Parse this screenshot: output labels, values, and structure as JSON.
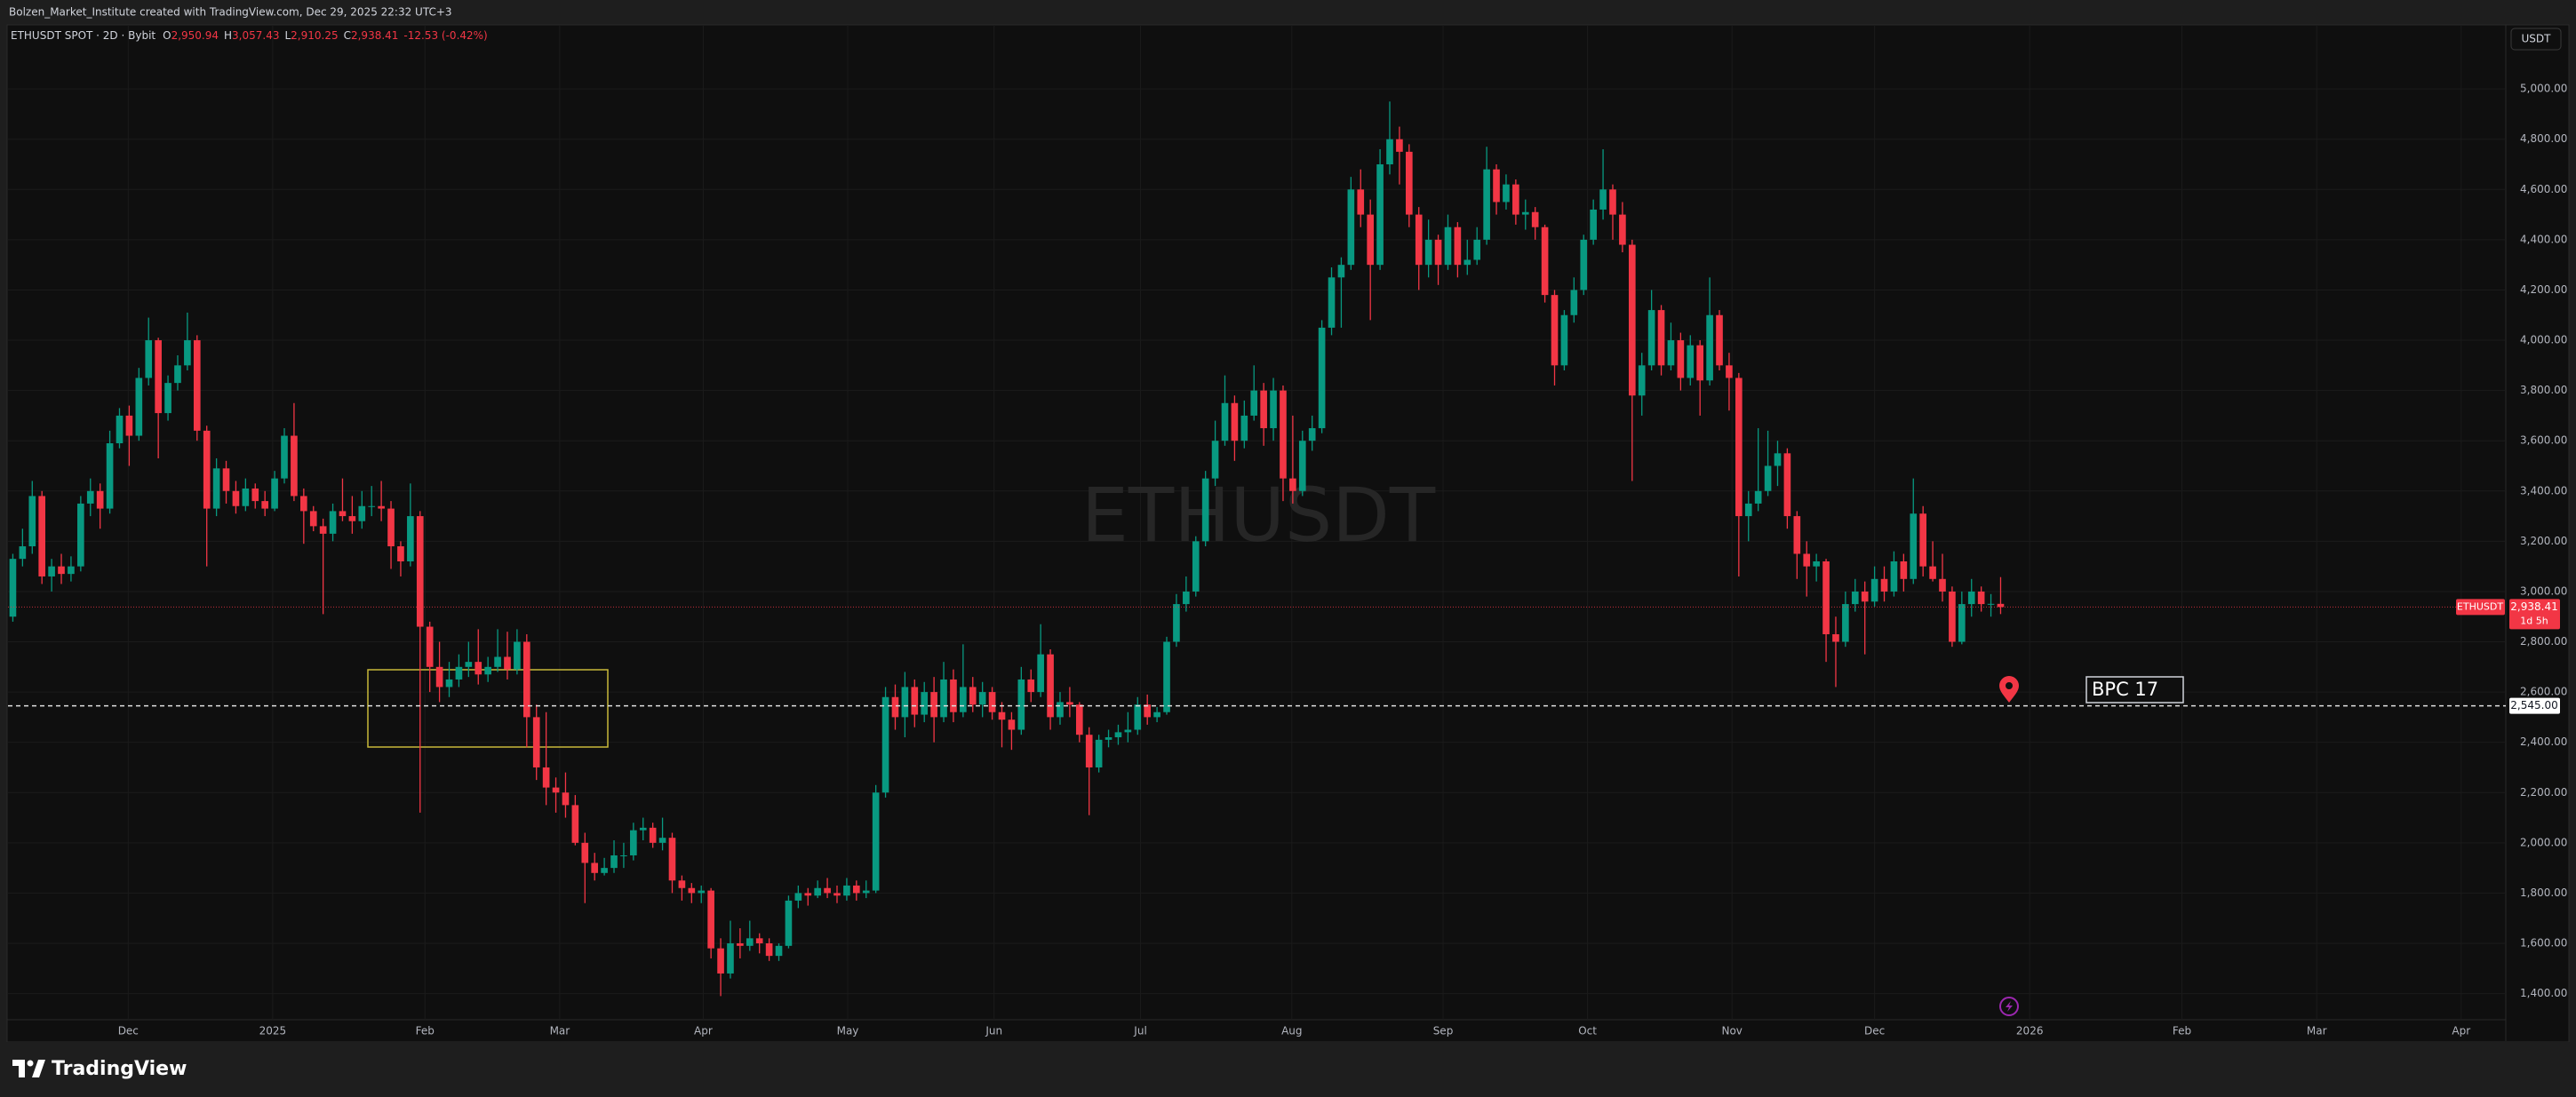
{
  "header": {
    "caption": "Bolzen_Market_Institute created with TradingView.com, Dec 29, 2025 22:32 UTC+3"
  },
  "chart_data": {
    "type": "candlestick",
    "symbol": "ETHUSDT SPOT · 2D · Bybit",
    "readout": [
      {
        "key": "O",
        "value": "2,950.94"
      },
      {
        "key": "H",
        "value": "3,057.43"
      },
      {
        "key": "L",
        "value": "2,910.25"
      },
      {
        "key": "C",
        "value": "2,938.41"
      }
    ],
    "change": "-12.53 (-0.42%)",
    "currency": "USDT",
    "watermark": "ETHUSDT",
    "up_color": "#089981",
    "down_color": "#f23645",
    "grid": true,
    "ohlc": [
      [
        2900,
        3150,
        2880,
        3130
      ],
      [
        3130,
        3250,
        3100,
        3180
      ],
      [
        3180,
        3440,
        3150,
        3380
      ],
      [
        3380,
        3400,
        3030,
        3060
      ],
      [
        3060,
        3130,
        3000,
        3100
      ],
      [
        3100,
        3150,
        3030,
        3070
      ],
      [
        3070,
        3140,
        3040,
        3100
      ],
      [
        3100,
        3380,
        3080,
        3350
      ],
      [
        3350,
        3450,
        3300,
        3400
      ],
      [
        3400,
        3430,
        3250,
        3330
      ],
      [
        3330,
        3640,
        3310,
        3590
      ],
      [
        3590,
        3730,
        3570,
        3700
      ],
      [
        3700,
        3740,
        3500,
        3620
      ],
      [
        3620,
        3890,
        3600,
        3850
      ],
      [
        3850,
        4090,
        3820,
        4000
      ],
      [
        4000,
        4010,
        3530,
        3710
      ],
      [
        3710,
        3860,
        3680,
        3830
      ],
      [
        3830,
        3940,
        3800,
        3900
      ],
      [
        3900,
        4110,
        3880,
        4000
      ],
      [
        4000,
        4020,
        3600,
        3640
      ],
      [
        3640,
        3660,
        3100,
        3330
      ],
      [
        3330,
        3530,
        3300,
        3490
      ],
      [
        3490,
        3520,
        3350,
        3400
      ],
      [
        3400,
        3440,
        3310,
        3340
      ],
      [
        3340,
        3450,
        3320,
        3410
      ],
      [
        3410,
        3430,
        3330,
        3360
      ],
      [
        3360,
        3400,
        3300,
        3330
      ],
      [
        3330,
        3480,
        3320,
        3450
      ],
      [
        3450,
        3650,
        3430,
        3620
      ],
      [
        3620,
        3750,
        3360,
        3380
      ],
      [
        3380,
        3410,
        3190,
        3320
      ],
      [
        3320,
        3340,
        3240,
        3260
      ],
      [
        3260,
        3290,
        2910,
        3230
      ],
      [
        3230,
        3350,
        3200,
        3320
      ],
      [
        3320,
        3450,
        3280,
        3300
      ],
      [
        3300,
        3380,
        3230,
        3280
      ],
      [
        3280,
        3400,
        3250,
        3340
      ],
      [
        3340,
        3420,
        3300,
        3340
      ],
      [
        3340,
        3440,
        3280,
        3330
      ],
      [
        3330,
        3360,
        3090,
        3180
      ],
      [
        3180,
        3200,
        3060,
        3120
      ],
      [
        3120,
        3430,
        3100,
        3300
      ],
      [
        3300,
        3320,
        2120,
        2860
      ],
      [
        2860,
        2880,
        2600,
        2700
      ],
      [
        2700,
        2800,
        2560,
        2620
      ],
      [
        2620,
        2720,
        2580,
        2650
      ],
      [
        2650,
        2750,
        2620,
        2700
      ],
      [
        2700,
        2800,
        2660,
        2720
      ],
      [
        2720,
        2850,
        2630,
        2670
      ],
      [
        2670,
        2740,
        2640,
        2700
      ],
      [
        2700,
        2850,
        2680,
        2740
      ],
      [
        2740,
        2840,
        2650,
        2690
      ],
      [
        2690,
        2850,
        2670,
        2800
      ],
      [
        2800,
        2830,
        2380,
        2500
      ],
      [
        2500,
        2550,
        2250,
        2300
      ],
      [
        2300,
        2520,
        2150,
        2220
      ],
      [
        2220,
        2260,
        2120,
        2200
      ],
      [
        2200,
        2280,
        2100,
        2150
      ],
      [
        2150,
        2190,
        1990,
        2000
      ],
      [
        2000,
        2040,
        1760,
        1920
      ],
      [
        1920,
        1960,
        1850,
        1880
      ],
      [
        1880,
        1940,
        1870,
        1900
      ],
      [
        1900,
        2010,
        1880,
        1950
      ],
      [
        1950,
        2000,
        1900,
        1950
      ],
      [
        1950,
        2080,
        1930,
        2050
      ],
      [
        2050,
        2100,
        2010,
        2060
      ],
      [
        2060,
        2080,
        1980,
        2000
      ],
      [
        2000,
        2100,
        1970,
        2020
      ],
      [
        2020,
        2040,
        1800,
        1850
      ],
      [
        1850,
        1870,
        1770,
        1820
      ],
      [
        1820,
        1840,
        1760,
        1800
      ],
      [
        1800,
        1830,
        1760,
        1810
      ],
      [
        1810,
        1820,
        1540,
        1580
      ],
      [
        1580,
        1620,
        1390,
        1480
      ],
      [
        1480,
        1690,
        1460,
        1600
      ],
      [
        1600,
        1660,
        1540,
        1590
      ],
      [
        1590,
        1690,
        1570,
        1620
      ],
      [
        1620,
        1640,
        1560,
        1600
      ],
      [
        1600,
        1620,
        1530,
        1550
      ],
      [
        1550,
        1600,
        1530,
        1590
      ],
      [
        1590,
        1790,
        1580,
        1770
      ],
      [
        1770,
        1830,
        1740,
        1800
      ],
      [
        1800,
        1820,
        1750,
        1790
      ],
      [
        1790,
        1850,
        1780,
        1820
      ],
      [
        1820,
        1860,
        1780,
        1800
      ],
      [
        1800,
        1830,
        1760,
        1790
      ],
      [
        1790,
        1860,
        1770,
        1830
      ],
      [
        1830,
        1850,
        1770,
        1800
      ],
      [
        1800,
        1850,
        1780,
        1810
      ],
      [
        1810,
        2230,
        1800,
        2200
      ],
      [
        2200,
        2620,
        2180,
        2580
      ],
      [
        2580,
        2630,
        2450,
        2500
      ],
      [
        2500,
        2680,
        2420,
        2620
      ],
      [
        2620,
        2650,
        2460,
        2510
      ],
      [
        2510,
        2640,
        2480,
        2600
      ],
      [
        2600,
        2660,
        2400,
        2500
      ],
      [
        2500,
        2720,
        2480,
        2650
      ],
      [
        2650,
        2690,
        2480,
        2520
      ],
      [
        2520,
        2790,
        2500,
        2620
      ],
      [
        2620,
        2660,
        2520,
        2550
      ],
      [
        2550,
        2640,
        2500,
        2600
      ],
      [
        2600,
        2620,
        2490,
        2520
      ],
      [
        2520,
        2560,
        2380,
        2490
      ],
      [
        2490,
        2520,
        2370,
        2450
      ],
      [
        2450,
        2700,
        2430,
        2650
      ],
      [
        2650,
        2690,
        2560,
        2600
      ],
      [
        2600,
        2870,
        2580,
        2750
      ],
      [
        2750,
        2770,
        2450,
        2500
      ],
      [
        2500,
        2600,
        2470,
        2560
      ],
      [
        2560,
        2620,
        2500,
        2550
      ],
      [
        2550,
        2560,
        2400,
        2430
      ],
      [
        2430,
        2460,
        2110,
        2300
      ],
      [
        2300,
        2430,
        2280,
        2410
      ],
      [
        2410,
        2450,
        2380,
        2420
      ],
      [
        2420,
        2470,
        2390,
        2440
      ],
      [
        2440,
        2520,
        2400,
        2450
      ],
      [
        2450,
        2580,
        2430,
        2550
      ],
      [
        2550,
        2590,
        2470,
        2500
      ],
      [
        2500,
        2540,
        2480,
        2520
      ],
      [
        2520,
        2820,
        2510,
        2800
      ],
      [
        2800,
        2990,
        2780,
        2950
      ],
      [
        2950,
        3060,
        2920,
        3000
      ],
      [
        3000,
        3220,
        2980,
        3200
      ],
      [
        3200,
        3480,
        3180,
        3450
      ],
      [
        3450,
        3680,
        3420,
        3600
      ],
      [
        3600,
        3860,
        3580,
        3750
      ],
      [
        3750,
        3780,
        3520,
        3600
      ],
      [
        3600,
        3760,
        3570,
        3700
      ],
      [
        3700,
        3900,
        3680,
        3800
      ],
      [
        3800,
        3830,
        3580,
        3650
      ],
      [
        3650,
        3850,
        3600,
        3800
      ],
      [
        3800,
        3820,
        3360,
        3450
      ],
      [
        3450,
        3700,
        3350,
        3400
      ],
      [
        3400,
        3640,
        3380,
        3600
      ],
      [
        3600,
        3700,
        3560,
        3650
      ],
      [
        3650,
        4080,
        3630,
        4050
      ],
      [
        4050,
        4290,
        4020,
        4250
      ],
      [
        4250,
        4330,
        4050,
        4300
      ],
      [
        4300,
        4650,
        4280,
        4600
      ],
      [
        4600,
        4680,
        4450,
        4500
      ],
      [
        4500,
        4560,
        4080,
        4300
      ],
      [
        4300,
        4760,
        4280,
        4700
      ],
      [
        4700,
        4950,
        4660,
        4800
      ],
      [
        4800,
        4850,
        4620,
        4750
      ],
      [
        4750,
        4780,
        4450,
        4500
      ],
      [
        4500,
        4530,
        4200,
        4300
      ],
      [
        4300,
        4480,
        4250,
        4400
      ],
      [
        4400,
        4420,
        4220,
        4300
      ],
      [
        4300,
        4500,
        4280,
        4450
      ],
      [
        4450,
        4470,
        4250,
        4300
      ],
      [
        4300,
        4400,
        4260,
        4320
      ],
      [
        4320,
        4450,
        4300,
        4400
      ],
      [
        4400,
        4770,
        4380,
        4680
      ],
      [
        4680,
        4700,
        4500,
        4550
      ],
      [
        4550,
        4660,
        4520,
        4620
      ],
      [
        4620,
        4640,
        4460,
        4500
      ],
      [
        4500,
        4560,
        4440,
        4510
      ],
      [
        4510,
        4530,
        4400,
        4450
      ],
      [
        4450,
        4460,
        4150,
        4180
      ],
      [
        4180,
        4200,
        3820,
        3900
      ],
      [
        3900,
        4120,
        3880,
        4100
      ],
      [
        4100,
        4250,
        4070,
        4200
      ],
      [
        4200,
        4420,
        4180,
        4400
      ],
      [
        4400,
        4560,
        4380,
        4520
      ],
      [
        4520,
        4760,
        4480,
        4600
      ],
      [
        4600,
        4620,
        4400,
        4500
      ],
      [
        4500,
        4550,
        4350,
        4380
      ],
      [
        4380,
        4400,
        3440,
        3780
      ],
      [
        3780,
        3950,
        3700,
        3900
      ],
      [
        3900,
        4200,
        3880,
        4120
      ],
      [
        4120,
        4140,
        3860,
        3900
      ],
      [
        3900,
        4070,
        3880,
        4000
      ],
      [
        4000,
        4030,
        3800,
        3850
      ],
      [
        3850,
        4020,
        3820,
        3980
      ],
      [
        3980,
        4000,
        3700,
        3840
      ],
      [
        3840,
        4250,
        3820,
        4100
      ],
      [
        4100,
        4120,
        3880,
        3900
      ],
      [
        3900,
        3950,
        3720,
        3850
      ],
      [
        3850,
        3870,
        3060,
        3300
      ],
      [
        3300,
        3400,
        3200,
        3350
      ],
      [
        3350,
        3650,
        3320,
        3400
      ],
      [
        3400,
        3640,
        3380,
        3500
      ],
      [
        3500,
        3600,
        3420,
        3550
      ],
      [
        3550,
        3570,
        3250,
        3300
      ],
      [
        3300,
        3320,
        3050,
        3150
      ],
      [
        3150,
        3200,
        2980,
        3100
      ],
      [
        3100,
        3150,
        3040,
        3120
      ],
      [
        3120,
        3130,
        2720,
        2830
      ],
      [
        2830,
        2900,
        2620,
        2800
      ],
      [
        2800,
        3000,
        2780,
        2950
      ],
      [
        2950,
        3050,
        2920,
        3000
      ],
      [
        3000,
        3040,
        2750,
        2960
      ],
      [
        2960,
        3100,
        2940,
        3050
      ],
      [
        3050,
        3100,
        2960,
        3000
      ],
      [
        3000,
        3160,
        2980,
        3120
      ],
      [
        3120,
        3150,
        3000,
        3050
      ],
      [
        3050,
        3450,
        3030,
        3310
      ],
      [
        3310,
        3340,
        3060,
        3100
      ],
      [
        3100,
        3200,
        3040,
        3050
      ],
      [
        3050,
        3150,
        2960,
        3000
      ],
      [
        3000,
        3020,
        2780,
        2800
      ],
      [
        2800,
        3000,
        2790,
        2950
      ],
      [
        2950,
        3050,
        2900,
        3000
      ],
      [
        3000,
        3020,
        2920,
        2950
      ],
      [
        2950,
        2990,
        2900,
        2950.94
      ],
      [
        2950.94,
        3057.43,
        2910.25,
        2938.41
      ]
    ],
    "xlim": [
      -0.5,
      257.1
    ],
    "xticks": [
      {
        "value": 11.9,
        "label": "Dec"
      },
      {
        "value": 26.8,
        "label": "2025"
      },
      {
        "value": 42.5,
        "label": "Feb"
      },
      {
        "value": 56.4,
        "label": "Mar"
      },
      {
        "value": 71.2,
        "label": "Apr"
      },
      {
        "value": 86.1,
        "label": "May"
      },
      {
        "value": 101.2,
        "label": "Jun"
      },
      {
        "value": 116.3,
        "label": "Jul"
      },
      {
        "value": 131.9,
        "label": "Aug"
      },
      {
        "value": 147.5,
        "label": "Sep"
      },
      {
        "value": 162.4,
        "label": "Oct"
      },
      {
        "value": 177.3,
        "label": "Nov"
      },
      {
        "value": 192.0,
        "label": "Dec"
      },
      {
        "value": 208.0,
        "label": "2026"
      },
      {
        "value": 223.7,
        "label": "Feb"
      },
      {
        "value": 237.6,
        "label": "Mar"
      },
      {
        "value": 252.5,
        "label": "Apr"
      }
    ],
    "ylim": [
      1296,
      5255
    ],
    "yticks": [
      {
        "value": 1400,
        "label": "1,400.00"
      },
      {
        "value": 1600,
        "label": "1,600.00"
      },
      {
        "value": 1800,
        "label": "1,800.00"
      },
      {
        "value": 2000,
        "label": "2,000.00"
      },
      {
        "value": 2200,
        "label": "2,200.00"
      },
      {
        "value": 2400,
        "label": "2,400.00"
      },
      {
        "value": 2600,
        "label": "2,600.00"
      },
      {
        "value": 2800,
        "label": "2,800.00"
      },
      {
        "value": 3000,
        "label": "3,000.00"
      },
      {
        "value": 3200,
        "label": "3,200.00"
      },
      {
        "value": 3400,
        "label": "3,400.00"
      },
      {
        "value": 3600,
        "label": "3,600.00"
      },
      {
        "value": 3800,
        "label": "3,800.00"
      },
      {
        "value": 4000,
        "label": "4,000.00"
      },
      {
        "value": 4200,
        "label": "4,200.00"
      },
      {
        "value": 4400,
        "label": "4,400.00"
      },
      {
        "value": 4600,
        "label": "4,600.00"
      },
      {
        "value": 4800,
        "label": "4,800.00"
      },
      {
        "value": 5000,
        "label": "5,000.00"
      }
    ],
    "last_price": {
      "value": 2938.41,
      "label": "2,938.41",
      "symbol": "ETHUSDT",
      "countdown": "1d 5h"
    },
    "level": {
      "value": 2545,
      "label": "2,545.00"
    },
    "annotation": "BPC 17"
  },
  "footer": {
    "logo": "TradingView"
  }
}
